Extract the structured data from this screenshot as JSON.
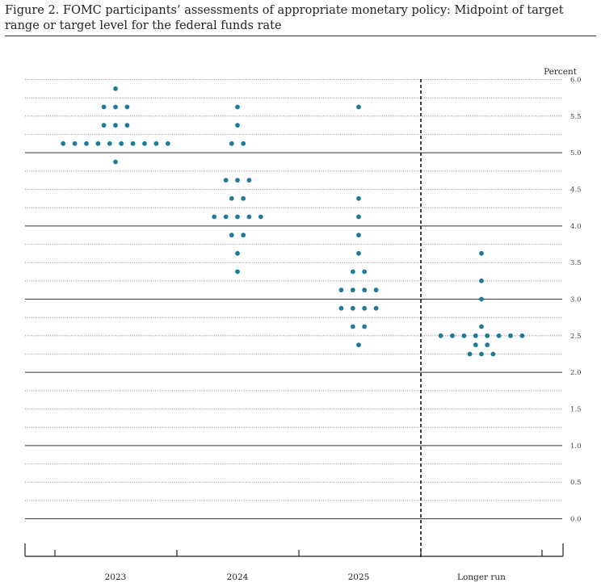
{
  "figure": {
    "title": "Figure 2.  FOMC participants’ assessments of appropriate monetary policy:  Midpoint of target range or target level for the federal funds rate"
  },
  "chart_data": {
    "type": "scatter",
    "title": "Figure 2.  FOMC participants’ assessments of appropriate monetary policy:  Midpoint of target range or target level for the federal funds rate",
    "ylabel": "Percent",
    "ylim": [
      0.0,
      6.0
    ],
    "y_ticks": [
      "0.0",
      "0.5",
      "1.0",
      "1.5",
      "2.0",
      "2.5",
      "3.0",
      "3.5",
      "4.0",
      "4.5",
      "5.0",
      "5.5",
      "6.0"
    ],
    "categories": [
      "2023",
      "2024",
      "2025",
      "Longer run"
    ],
    "grid": "dotted lines every 0.25 percentage point, solid lines at whole percents",
    "dot_color": "#1f7a9a",
    "dots": [
      {
        "category": "2023",
        "y": 5.875,
        "count": 1
      },
      {
        "category": "2023",
        "y": 5.625,
        "count": 3
      },
      {
        "category": "2023",
        "y": 5.375,
        "count": 3
      },
      {
        "category": "2023",
        "y": 5.125,
        "count": 10
      },
      {
        "category": "2023",
        "y": 4.875,
        "count": 1
      },
      {
        "category": "2024",
        "y": 5.625,
        "count": 1
      },
      {
        "category": "2024",
        "y": 5.375,
        "count": 1
      },
      {
        "category": "2024",
        "y": 5.125,
        "count": 2
      },
      {
        "category": "2024",
        "y": 4.625,
        "count": 3
      },
      {
        "category": "2024",
        "y": 4.375,
        "count": 2
      },
      {
        "category": "2024",
        "y": 4.125,
        "count": 5
      },
      {
        "category": "2024",
        "y": 3.875,
        "count": 2
      },
      {
        "category": "2024",
        "y": 3.625,
        "count": 1
      },
      {
        "category": "2024",
        "y": 3.375,
        "count": 1
      },
      {
        "category": "2025",
        "y": 5.625,
        "count": 1
      },
      {
        "category": "2025",
        "y": 4.375,
        "count": 1
      },
      {
        "category": "2025",
        "y": 4.125,
        "count": 1
      },
      {
        "category": "2025",
        "y": 3.875,
        "count": 1
      },
      {
        "category": "2025",
        "y": 3.625,
        "count": 1
      },
      {
        "category": "2025",
        "y": 3.375,
        "count": 2
      },
      {
        "category": "2025",
        "y": 3.125,
        "count": 4
      },
      {
        "category": "2025",
        "y": 2.875,
        "count": 4
      },
      {
        "category": "2025",
        "y": 2.625,
        "count": 2
      },
      {
        "category": "2025",
        "y": 2.375,
        "count": 1
      },
      {
        "category": "Longer run",
        "y": 3.625,
        "count": 1
      },
      {
        "category": "Longer run",
        "y": 3.25,
        "count": 1
      },
      {
        "category": "Longer run",
        "y": 3.0,
        "count": 1
      },
      {
        "category": "Longer run",
        "y": 2.625,
        "count": 1
      },
      {
        "category": "Longer run",
        "y": 2.5,
        "count": 8
      },
      {
        "category": "Longer run",
        "y": 2.375,
        "count": 2
      },
      {
        "category": "Longer run",
        "y": 2.25,
        "count": 3
      }
    ]
  }
}
